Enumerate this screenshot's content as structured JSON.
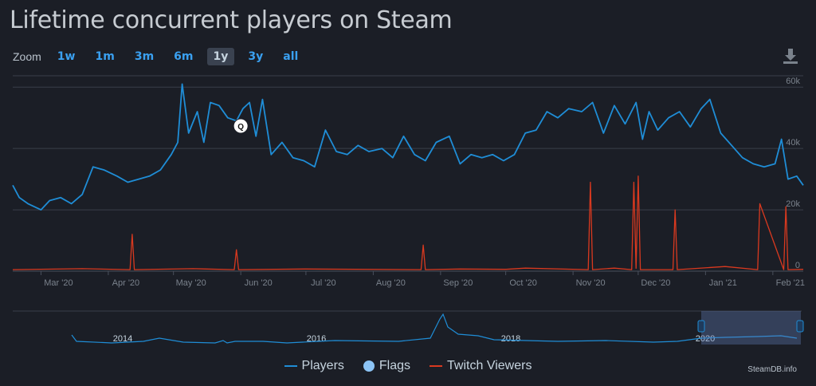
{
  "title": "Lifetime concurrent players on Steam",
  "zoom": {
    "label": "Zoom",
    "options": [
      "1w",
      "1m",
      "3m",
      "6m",
      "1y",
      "3y",
      "all"
    ],
    "active": "1y"
  },
  "legend": {
    "players": "Players",
    "flags": "Flags",
    "twitch": "Twitch Viewers"
  },
  "credit": "SteamDB.info",
  "flag_marker": "Q",
  "colors": {
    "players": "#1f8dd6",
    "twitch": "#d9391f",
    "flags": "#8cc4f5",
    "background": "#1b1e26",
    "grid": "#3a3f4a",
    "accent": "#3aa0f0"
  },
  "icons": {
    "download": "download-icon"
  },
  "chart_data": {
    "type": "line",
    "x_range": [
      "2020-02-17",
      "2021-02-15"
    ],
    "y_ticks": [
      "0",
      "20k",
      "40k",
      "60k"
    ],
    "ylim": [
      0,
      65000
    ],
    "x_ticks": [
      "Mar '20",
      "Apr '20",
      "May '20",
      "Jun '20",
      "Jul '20",
      "Aug '20",
      "Sep '20",
      "Oct '20",
      "Nov '20",
      "Dec '20",
      "Jan '21",
      "Feb '21"
    ],
    "series": [
      {
        "name": "Players",
        "x": [
          "2020-02-17",
          "2020-02-20",
          "2020-02-24",
          "2020-03-01",
          "2020-03-05",
          "2020-03-10",
          "2020-03-15",
          "2020-03-20",
          "2020-03-25",
          "2020-03-30",
          "2020-04-05",
          "2020-04-10",
          "2020-04-15",
          "2020-04-20",
          "2020-04-25",
          "2020-04-30",
          "2020-05-03",
          "2020-05-05",
          "2020-05-08",
          "2020-05-12",
          "2020-05-15",
          "2020-05-18",
          "2020-05-22",
          "2020-05-26",
          "2020-05-30",
          "2020-06-02",
          "2020-06-05",
          "2020-06-08",
          "2020-06-11",
          "2020-06-15",
          "2020-06-20",
          "2020-06-25",
          "2020-06-30",
          "2020-07-05",
          "2020-07-10",
          "2020-07-15",
          "2020-07-20",
          "2020-07-25",
          "2020-07-30",
          "2020-08-05",
          "2020-08-10",
          "2020-08-15",
          "2020-08-20",
          "2020-08-25",
          "2020-08-30",
          "2020-09-05",
          "2020-09-10",
          "2020-09-15",
          "2020-09-20",
          "2020-09-25",
          "2020-09-30",
          "2020-10-05",
          "2020-10-10",
          "2020-10-15",
          "2020-10-20",
          "2020-10-25",
          "2020-10-30",
          "2020-11-05",
          "2020-11-10",
          "2020-11-15",
          "2020-11-20",
          "2020-11-25",
          "2020-11-30",
          "2020-12-03",
          "2020-12-06",
          "2020-12-10",
          "2020-12-15",
          "2020-12-20",
          "2020-12-25",
          "2020-12-30",
          "2021-01-03",
          "2021-01-08",
          "2021-01-13",
          "2021-01-18",
          "2021-01-23",
          "2021-01-28",
          "2021-02-02",
          "2021-02-05",
          "2021-02-08",
          "2021-02-12",
          "2021-02-15"
        ],
        "values": [
          28000,
          24000,
          22000,
          20000,
          23000,
          24000,
          22000,
          25000,
          34000,
          33000,
          31000,
          29000,
          30000,
          31000,
          33000,
          38000,
          42000,
          61000,
          45000,
          52000,
          42000,
          55000,
          54000,
          50000,
          49000,
          53000,
          55000,
          44000,
          56000,
          38000,
          42000,
          37000,
          36000,
          34000,
          46000,
          39000,
          38000,
          41000,
          39000,
          40000,
          37000,
          44000,
          38000,
          36000,
          42000,
          44000,
          35000,
          38000,
          37000,
          38000,
          36000,
          38000,
          45000,
          46000,
          52000,
          50000,
          53000,
          52000,
          55000,
          45000,
          54000,
          48000,
          55000,
          43000,
          52000,
          46000,
          50000,
          52000,
          47000,
          53000,
          56000,
          45000,
          41000,
          37000,
          35000,
          34000,
          35000,
          43000,
          30000,
          31000,
          28000
        ]
      },
      {
        "name": "Twitch Viewers",
        "x": [
          "2020-02-17",
          "2020-03-20",
          "2020-04-11",
          "2020-04-12",
          "2020-04-13",
          "2020-05-10",
          "2020-05-29",
          "2020-05-30",
          "2020-05-31",
          "2020-07-01",
          "2020-08-23",
          "2020-08-24",
          "2020-08-25",
          "2020-09-10",
          "2020-10-01",
          "2020-10-10",
          "2020-11-08",
          "2020-11-09",
          "2020-11-10",
          "2020-11-20",
          "2020-11-28",
          "2020-11-29",
          "2020-11-30",
          "2020-12-01",
          "2020-12-02",
          "2020-12-17",
          "2020-12-18",
          "2020-12-19",
          "2021-01-10",
          "2021-01-25",
          "2021-01-26",
          "2021-02-06",
          "2021-02-07",
          "2021-02-08",
          "2021-02-15"
        ],
        "values": [
          500,
          800,
          500,
          12000,
          500,
          800,
          500,
          7000,
          500,
          700,
          500,
          8500,
          500,
          700,
          600,
          1000,
          500,
          29000,
          500,
          1000,
          500,
          29000,
          900,
          31000,
          500,
          500,
          20000,
          500,
          1500,
          500,
          22000,
          500,
          21000,
          500,
          600
        ]
      }
    ],
    "overview": {
      "x_ticks": [
        "2014",
        "2016",
        "2018",
        "2020"
      ],
      "selection": [
        "2020-02-17",
        "2021-02-15"
      ]
    },
    "flags": [
      {
        "date": "2020-06-01",
        "label": "Q"
      }
    ],
    "legend_position": "bottom",
    "grid": true
  }
}
